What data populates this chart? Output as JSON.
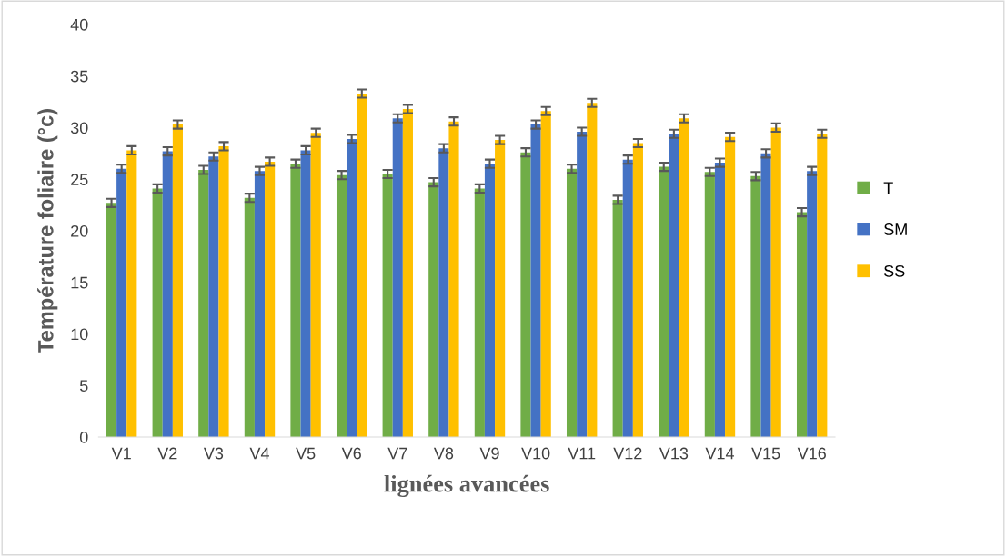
{
  "chart_data": {
    "type": "bar",
    "xlabel": "lignées avancées",
    "ylabel": "Température foliaire (°c)",
    "categories": [
      "V1",
      "V2",
      "V3",
      "V4",
      "V5",
      "V6",
      "V7",
      "V8",
      "V9",
      "V10",
      "V11",
      "V12",
      "V13",
      "V14",
      "V15",
      "V16"
    ],
    "series": [
      {
        "name": "T",
        "color": "#70ad47",
        "values": [
          22.7,
          24.1,
          25.9,
          23.2,
          26.5,
          25.4,
          25.5,
          24.7,
          24.1,
          27.6,
          26.0,
          23.0,
          26.2,
          25.7,
          25.3,
          21.8
        ],
        "errors": [
          0.4,
          0.4,
          0.4,
          0.4,
          0.4,
          0.4,
          0.4,
          0.4,
          0.4,
          0.4,
          0.4,
          0.4,
          0.4,
          0.4,
          0.4,
          0.4
        ]
      },
      {
        "name": "SM",
        "color": "#4472c4",
        "values": [
          26.0,
          27.7,
          27.2,
          25.8,
          27.8,
          28.9,
          30.9,
          28.0,
          26.5,
          30.3,
          29.6,
          26.9,
          29.4,
          26.6,
          27.5,
          25.8
        ],
        "errors": [
          0.4,
          0.4,
          0.4,
          0.4,
          0.4,
          0.4,
          0.4,
          0.4,
          0.4,
          0.4,
          0.4,
          0.4,
          0.4,
          0.4,
          0.4,
          0.4
        ]
      },
      {
        "name": "SS",
        "color": "#ffc000",
        "values": [
          27.8,
          30.3,
          28.2,
          26.7,
          29.5,
          33.3,
          31.8,
          30.6,
          28.8,
          31.6,
          32.4,
          28.5,
          30.9,
          29.1,
          30.0,
          29.4
        ],
        "errors": [
          0.4,
          0.4,
          0.4,
          0.4,
          0.4,
          0.4,
          0.4,
          0.4,
          0.4,
          0.4,
          0.4,
          0.4,
          0.4,
          0.4,
          0.4,
          0.4
        ]
      }
    ],
    "ylim": [
      0,
      40
    ],
    "yticks": [
      0,
      5,
      10,
      15,
      20,
      25,
      30,
      35,
      40
    ],
    "grid": false,
    "legend": "right"
  }
}
